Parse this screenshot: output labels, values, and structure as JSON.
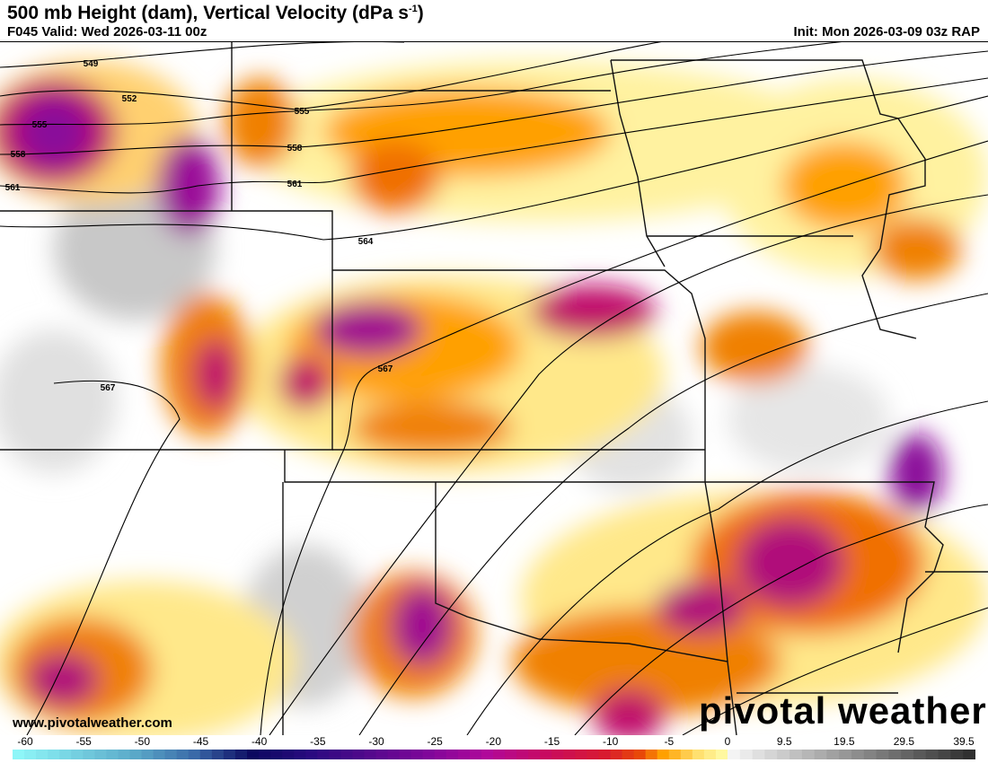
{
  "header": {
    "title": "500 mb Height (dam), Vertical Velocity (dPa s",
    "title_sup": "-1",
    "title_end": ")",
    "valid": "F045 Valid: Wed 2026-03-11 00z",
    "init": "Init: Mon 2026-03-09 03z RAP"
  },
  "footer": {
    "url": "www.pivotalweather.com",
    "logo": "pivotal weather"
  },
  "map": {
    "contour_labels": [
      "549",
      "552",
      "555",
      "558",
      "561",
      "555",
      "558",
      "561",
      "564",
      "567",
      "567"
    ]
  },
  "colorbar": {
    "ticks": [
      "-60",
      "-55",
      "-50",
      "-45",
      "-40",
      "-35",
      "-30",
      "-25",
      "-20",
      "-15",
      "-10",
      "-5",
      "0",
      "9.5",
      "19.5",
      "29.5",
      "39.5"
    ],
    "colors": {
      "-60": "#8ef6f8",
      "-50": "#5aa8c8",
      "-45": "#3a6aa8",
      "-40": "#0c0860",
      "-35": "#2a0a80",
      "-25": "#80069a",
      "-20": "#b0089a",
      "-15": "#c80a60",
      "-10": "#d81a30",
      "-7": "#e84808",
      "-5": "#ffa000",
      "-2": "#ffe070",
      "0": "#fff8a0",
      "pos_start": "#f4f4f4",
      "pos_end": "#303030"
    }
  }
}
